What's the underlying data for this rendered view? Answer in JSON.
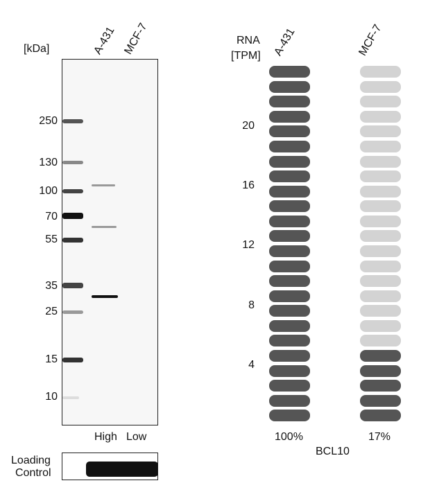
{
  "western_blot": {
    "unit_label": "[kDa]",
    "lanes": [
      "A-431",
      "MCF-7"
    ],
    "lane_levels": [
      "High",
      "Low"
    ],
    "markers": [
      "250",
      "130",
      "100",
      "70",
      "55",
      "35",
      "25",
      "15",
      "10"
    ],
    "loading_control_label_line1": "Loading",
    "loading_control_label_line2": "Control"
  },
  "rna_panel": {
    "title_line1": "RNA",
    "title_line2": "[TPM]",
    "cell_lines": [
      "A-431",
      "MCF-7"
    ],
    "y_ticks": [
      "4",
      "8",
      "12",
      "16",
      "20"
    ],
    "gene": "BCL10"
  },
  "chart_data": {
    "type": "bar",
    "categories": [
      "A-431",
      "MCF-7"
    ],
    "values": [
      100,
      17
    ],
    "value_labels": [
      "100%",
      "17%"
    ],
    "segments_total": 24,
    "segments_filled": [
      24,
      5
    ],
    "ylabel": "RNA [TPM]",
    "y_ticks": [
      4,
      8,
      12,
      16,
      20
    ],
    "xlabel": "BCL10",
    "colors": {
      "filled": "#555555",
      "empty": "#d3d3d3"
    }
  }
}
